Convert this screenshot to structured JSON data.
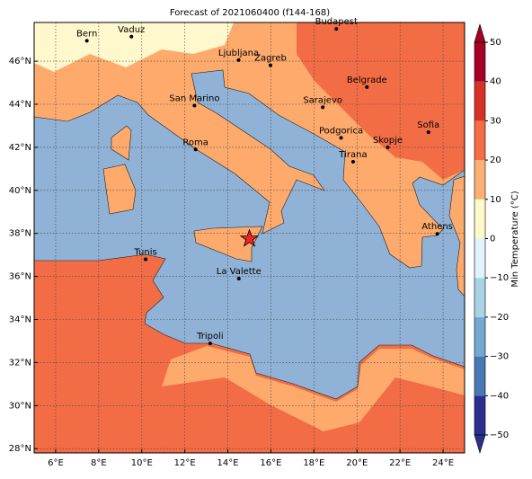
{
  "chart_data": {
    "type": "map",
    "title": "Forecast of 2021060400 (f144-168)",
    "xlim": [
      5,
      25
    ],
    "ylim": [
      27.8,
      47.8
    ],
    "xticks": [
      {
        "value": 6,
        "label": "6°E"
      },
      {
        "value": 8,
        "label": "8°E"
      },
      {
        "value": 10,
        "label": "10°E"
      },
      {
        "value": 12,
        "label": "12°E"
      },
      {
        "value": 14,
        "label": "14°E"
      },
      {
        "value": 16,
        "label": "16°E"
      },
      {
        "value": 18,
        "label": "18°E"
      },
      {
        "value": 20,
        "label": "20°E"
      },
      {
        "value": 22,
        "label": "22°E"
      },
      {
        "value": 24,
        "label": "24°E"
      }
    ],
    "yticks": [
      {
        "value": 28,
        "label": "28°N"
      },
      {
        "value": 30,
        "label": "30°N"
      },
      {
        "value": 32,
        "label": "32°N"
      },
      {
        "value": 34,
        "label": "34°N"
      },
      {
        "value": 36,
        "label": "36°N"
      },
      {
        "value": 38,
        "label": "38°N"
      },
      {
        "value": 40,
        "label": "40°N"
      },
      {
        "value": 42,
        "label": "42°N"
      },
      {
        "value": 44,
        "label": "44°N"
      },
      {
        "value": 46,
        "label": "46°N"
      }
    ],
    "grid": true,
    "cities": [
      {
        "name": "Bern",
        "lon": 7.45,
        "lat": 46.95
      },
      {
        "name": "Vaduz",
        "lon": 9.52,
        "lat": 47.14
      },
      {
        "name": "Budapest",
        "lon": 19.04,
        "lat": 47.5
      },
      {
        "name": "Ljubljana",
        "lon": 14.5,
        "lat": 46.05
      },
      {
        "name": "Zagreb",
        "lon": 15.98,
        "lat": 45.81
      },
      {
        "name": "Belgrade",
        "lon": 20.46,
        "lat": 44.8
      },
      {
        "name": "San Marino",
        "lon": 12.45,
        "lat": 43.94
      },
      {
        "name": "Sarajevo",
        "lon": 18.41,
        "lat": 43.86
      },
      {
        "name": "Sofia",
        "lon": 23.32,
        "lat": 42.7
      },
      {
        "name": "Podgorica",
        "lon": 19.26,
        "lat": 42.44
      },
      {
        "name": "Skopje",
        "lon": 21.43,
        "lat": 42.0
      },
      {
        "name": "Roma",
        "lon": 12.5,
        "lat": 41.9
      },
      {
        "name": "Tirana",
        "lon": 19.82,
        "lat": 41.33
      },
      {
        "name": "Athens",
        "lon": 23.73,
        "lat": 37.98
      },
      {
        "name": "Tunis",
        "lon": 10.18,
        "lat": 36.8
      },
      {
        "name": "La Valette",
        "lon": 14.51,
        "lat": 35.9
      },
      {
        "name": "Tripoli",
        "lon": 13.18,
        "lat": 32.89
      }
    ],
    "marker": {
      "lon": 15.0,
      "lat": 37.75,
      "color": "#e8262a"
    },
    "colorbar": {
      "label": "Min Temperature (°C)",
      "ticks": [
        {
          "value": -50,
          "label": "−50"
        },
        {
          "value": -40,
          "label": "−40"
        },
        {
          "value": -30,
          "label": "−30"
        },
        {
          "value": -20,
          "label": "−20"
        },
        {
          "value": -10,
          "label": "−10"
        },
        0,
        10,
        20,
        30,
        40,
        50
      ],
      "colors": [
        "#2b2f8e",
        "#4a78b5",
        "#74a9cf",
        "#a9d4e6",
        "#e0f3f8",
        "#fffac8",
        "#fdb074",
        "#f46d43",
        "#d73027",
        "#a50026"
      ]
    }
  }
}
